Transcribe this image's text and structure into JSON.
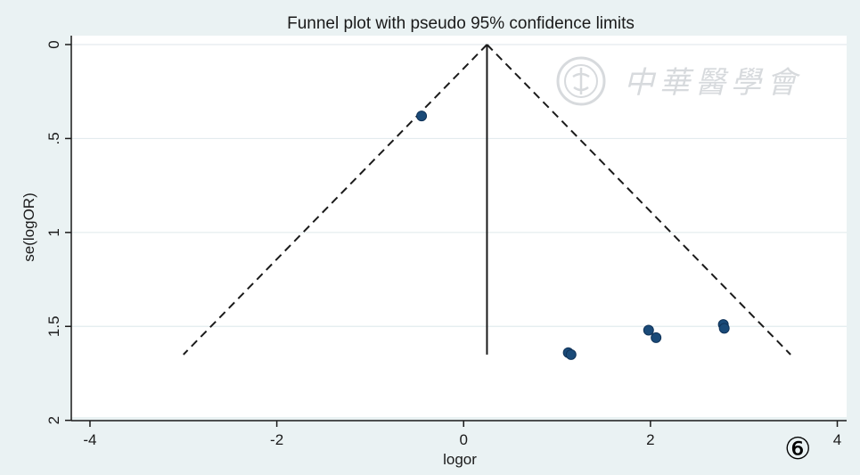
{
  "figure_number": "⑥",
  "watermark": {
    "text": "中華醫學會",
    "icon": "medical-association-seal-icon"
  },
  "chart_data": {
    "type": "scatter",
    "title": "Funnel plot with pseudo 95% confidence limits",
    "xlabel": "logor",
    "ylabel": "se(logOR)",
    "xlim": [
      -4.2,
      4.1
    ],
    "ylim": [
      0,
      2.03
    ],
    "y_reversed": true,
    "grid": true,
    "legend": "none",
    "x_ticks": [
      {
        "value": -4,
        "label": "-4"
      },
      {
        "value": -2,
        "label": "-2"
      },
      {
        "value": 0,
        "label": "0"
      },
      {
        "value": 2,
        "label": "2"
      },
      {
        "value": 4,
        "label": "4"
      }
    ],
    "y_ticks": [
      {
        "value": 0,
        "label": "0"
      },
      {
        "value": 0.5,
        "label": ".5"
      },
      {
        "value": 1,
        "label": "1"
      },
      {
        "value": 1.5,
        "label": "1.5"
      },
      {
        "value": 2,
        "label": "2"
      }
    ],
    "pooled_estimate": 0.25,
    "pooled_line_se_max": 1.65,
    "confidence_limits": {
      "apex": [
        0.25,
        0
      ],
      "lower_end": [
        -3.0,
        1.65
      ],
      "upper_end": [
        3.5,
        1.65
      ]
    },
    "points": [
      {
        "x": -0.45,
        "y": 0.38
      },
      {
        "x": 1.12,
        "y": 1.64
      },
      {
        "x": 1.15,
        "y": 1.65
      },
      {
        "x": 1.98,
        "y": 1.52
      },
      {
        "x": 2.06,
        "y": 1.56
      },
      {
        "x": 2.78,
        "y": 1.49
      },
      {
        "x": 2.79,
        "y": 1.51
      }
    ],
    "colors": {
      "plot_background": "#eaf2f3",
      "marker": "#1a4a78",
      "line": "#1a1a1a",
      "grid": "#ffffff"
    }
  }
}
